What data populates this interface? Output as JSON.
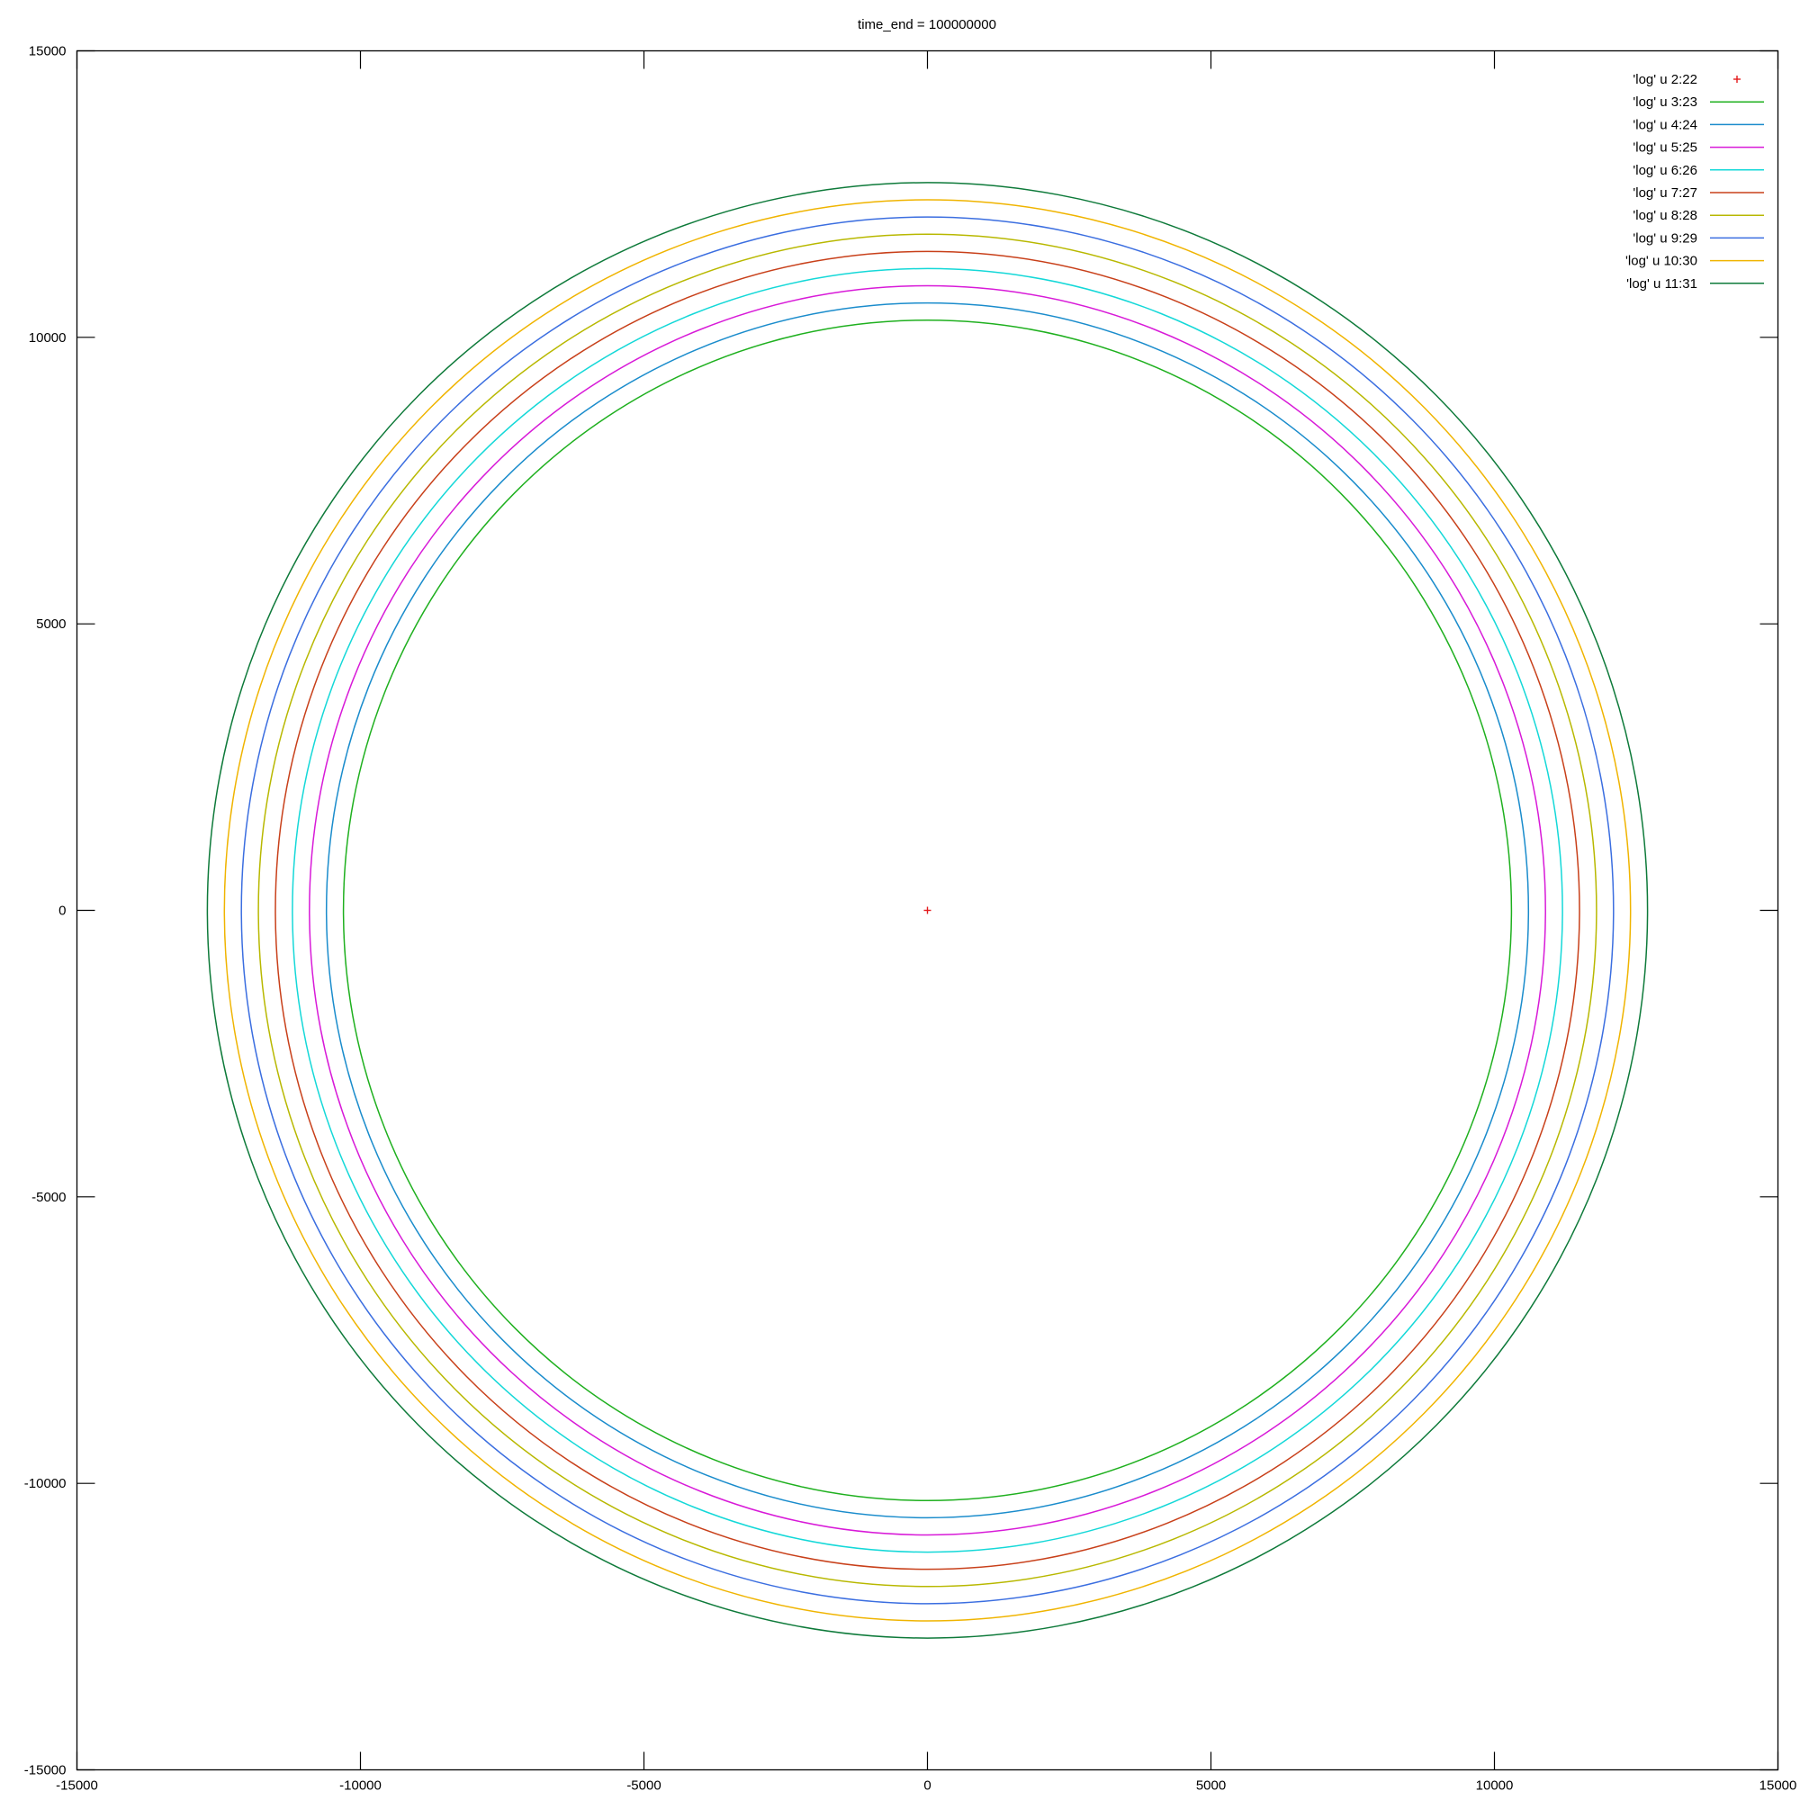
{
  "chart_data": {
    "type": "line",
    "title": "time_end = 100000000",
    "xlabel": "",
    "ylabel": "",
    "xlim": [
      -15000,
      15000
    ],
    "ylim": [
      -15000,
      15000
    ],
    "xticks": [
      -15000,
      -10000,
      -5000,
      0,
      5000,
      10000,
      15000
    ],
    "yticks": [
      -15000,
      -10000,
      -5000,
      0,
      5000,
      10000,
      15000
    ],
    "xtick_labels": [
      "-15000",
      "-10000",
      "-5000",
      "0",
      "5000",
      "10000",
      "15000"
    ],
    "ytick_labels": [
      "-15000",
      "-10000",
      "-5000",
      "0",
      "5000",
      "10000",
      "15000"
    ],
    "grid": false,
    "legend_position": "top-right",
    "series": [
      {
        "name": "'log' u 2:22",
        "style": "points",
        "marker": "+",
        "color": "#e41a1c",
        "x": [
          0
        ],
        "y": [
          0
        ]
      },
      {
        "name": "'log' u 3:23",
        "style": "circle",
        "color": "#1fb01f",
        "center": [
          0,
          0
        ],
        "radius": 10300
      },
      {
        "name": "'log' u 4:24",
        "style": "circle",
        "color": "#1a8ccc",
        "center": [
          0,
          0
        ],
        "radius": 10600
      },
      {
        "name": "'log' u 5:25",
        "style": "circle",
        "color": "#d81ad8",
        "center": [
          0,
          0
        ],
        "radius": 10900
      },
      {
        "name": "'log' u 6:26",
        "style": "circle",
        "color": "#14d8d8",
        "center": [
          0,
          0
        ],
        "radius": 11200
      },
      {
        "name": "'log' u 7:27",
        "style": "circle",
        "color": "#c8401a",
        "center": [
          0,
          0
        ],
        "radius": 11500
      },
      {
        "name": "'log' u 8:28",
        "style": "circle",
        "color": "#b8b800",
        "center": [
          0,
          0
        ],
        "radius": 11800
      },
      {
        "name": "'log' u 9:29",
        "style": "circle",
        "color": "#3b6ee0",
        "center": [
          0,
          0
        ],
        "radius": 12100
      },
      {
        "name": "'log' u 10:30",
        "style": "circle",
        "color": "#f0b400",
        "center": [
          0,
          0
        ],
        "radius": 12400
      },
      {
        "name": "'log' u 11:31",
        "style": "circle",
        "color": "#0e7a3a",
        "center": [
          0,
          0
        ],
        "radius": 12700
      }
    ]
  }
}
